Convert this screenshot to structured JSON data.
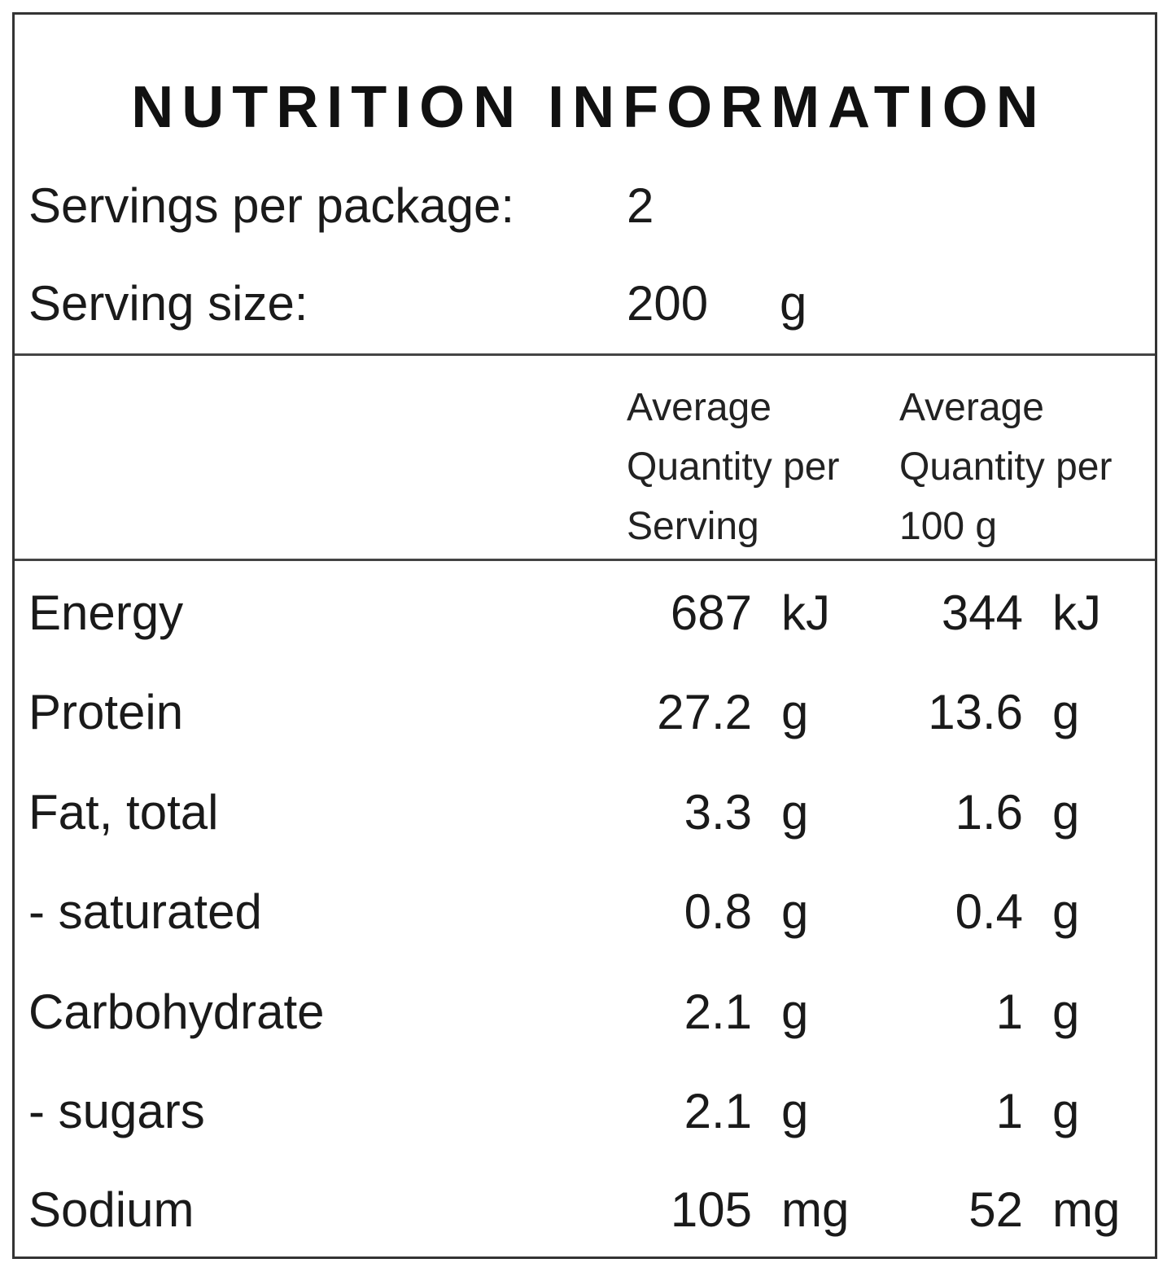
{
  "title": "NUTRITION INFORMATION",
  "servings_per_package": {
    "label": "Servings per package:",
    "value": "2"
  },
  "serving_size": {
    "label": "Serving size:",
    "value": "200",
    "unit": "g"
  },
  "columns": {
    "per_serving": [
      "Average",
      "Quantity per",
      "Serving"
    ],
    "per_100g": [
      "Average",
      "Quantity per",
      "100 g"
    ]
  },
  "rows": [
    {
      "name": "Energy",
      "per_serving": "687",
      "per_serving_unit": "kJ",
      "per_100g": "344",
      "per_100g_unit": "kJ"
    },
    {
      "name": "Protein",
      "per_serving": "27.2",
      "per_serving_unit": "g",
      "per_100g": "13.6",
      "per_100g_unit": "g"
    },
    {
      "name": "Fat, total",
      "per_serving": "3.3",
      "per_serving_unit": "g",
      "per_100g": "1.6",
      "per_100g_unit": "g"
    },
    {
      "name": "- saturated",
      "per_serving": "0.8",
      "per_serving_unit": "g",
      "per_100g": "0.4",
      "per_100g_unit": "g"
    },
    {
      "name": "Carbohydrate",
      "per_serving": "2.1",
      "per_serving_unit": "g",
      "per_100g": "1",
      "per_100g_unit": "g"
    },
    {
      "name": "- sugars",
      "per_serving": "2.1",
      "per_serving_unit": "g",
      "per_100g": "1",
      "per_100g_unit": "g"
    },
    {
      "name": "Sodium",
      "per_serving": "105",
      "per_serving_unit": "mg",
      "per_100g": "52",
      "per_100g_unit": "mg"
    }
  ]
}
